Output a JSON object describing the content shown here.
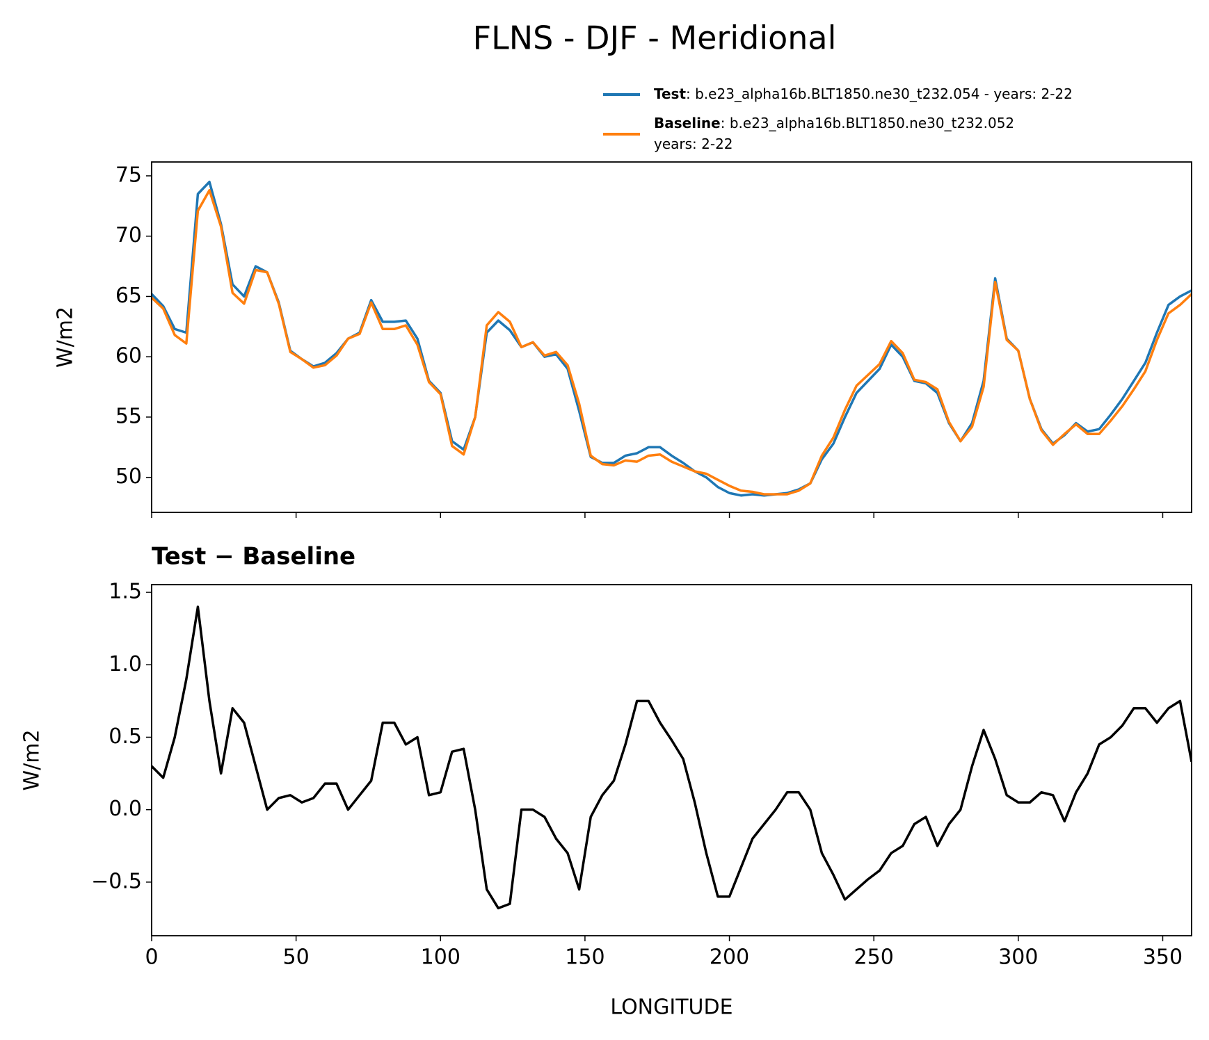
{
  "chart_data": [
    {
      "type": "line",
      "title": "FLNS - DJF - Meridional",
      "ylabel": "W/m2",
      "x": [
        0,
        4,
        8,
        12,
        16,
        20,
        24,
        28,
        32,
        36,
        40,
        44,
        48,
        52,
        56,
        60,
        64,
        68,
        72,
        76,
        80,
        84,
        88,
        92,
        96,
        100,
        104,
        108,
        112,
        116,
        120,
        124,
        128,
        132,
        136,
        140,
        144,
        148,
        152,
        156,
        160,
        164,
        168,
        172,
        176,
        180,
        184,
        188,
        192,
        196,
        200,
        204,
        208,
        212,
        216,
        220,
        224,
        228,
        232,
        236,
        240,
        244,
        248,
        252,
        256,
        260,
        264,
        268,
        272,
        276,
        280,
        284,
        288,
        292,
        296,
        300,
        304,
        308,
        312,
        316,
        320,
        324,
        328,
        332,
        336,
        340,
        344,
        348,
        352,
        356,
        360
      ],
      "series": [
        {
          "name": "Test",
          "detail": [
            ": b.e23_alpha16b.BLT1850.ne30_t232.054 - years: 2-22"
          ],
          "color": "#1f77b4",
          "values": [
            65.2,
            64.2,
            62.3,
            62,
            73.5,
            74.5,
            71,
            66,
            65,
            67.5,
            67,
            64.5,
            60.5,
            59.8,
            59.2,
            59.5,
            60.3,
            61.5,
            62,
            64.7,
            62.9,
            62.9,
            63,
            61.5,
            58,
            57,
            53,
            52.3,
            55,
            62,
            63,
            62.2,
            60.8,
            61.2,
            60,
            60.2,
            59,
            55.5,
            51.7,
            51.2,
            51.2,
            51.8,
            52,
            52.5,
            52.5,
            51.8,
            51.2,
            50.5,
            50,
            49.2,
            48.7,
            48.5,
            48.6,
            48.5,
            48.6,
            48.7,
            49,
            49.5,
            51.5,
            52.8,
            55,
            57,
            58,
            59,
            61,
            60,
            58,
            57.8,
            57,
            54.5,
            53,
            54.5,
            58,
            66.5,
            61.5,
            60.5,
            56.5,
            54,
            52.8,
            53.5,
            54.5,
            53.8,
            54,
            55.2,
            56.5,
            58,
            59.5,
            62,
            64.3,
            65,
            65.5
          ]
        },
        {
          "name": "Baseline",
          "detail": [
            ": b.e23_alpha16b.BLT1850.ne30_t232.052",
            "years: 2-22"
          ],
          "color": "#ff7f0e",
          "values": [
            64.9,
            64,
            61.8,
            61.1,
            72.1,
            73.8,
            70.8,
            65.3,
            64.4,
            67.2,
            67,
            64.4,
            60.4,
            59.8,
            59.1,
            59.3,
            60.1,
            61.5,
            61.9,
            64.5,
            62.3,
            62.3,
            62.6,
            61,
            57.9,
            56.9,
            52.6,
            51.9,
            55,
            62.6,
            63.7,
            62.9,
            60.8,
            61.2,
            60.1,
            60.4,
            59.3,
            56.1,
            51.8,
            51.1,
            51,
            51.4,
            51.3,
            51.8,
            51.9,
            51.3,
            50.9,
            50.5,
            50.3,
            49.8,
            49.3,
            48.9,
            48.8,
            48.6,
            48.6,
            48.6,
            48.9,
            49.5,
            51.8,
            53.3,
            55.6,
            57.6,
            58.5,
            59.4,
            61.3,
            60.3,
            58.1,
            57.9,
            57.3,
            54.6,
            53,
            54.2,
            57.5,
            66.2,
            61.4,
            60.5,
            56.5,
            53.9,
            52.7,
            53.6,
            54.4,
            53.6,
            53.6,
            54.7,
            55.9,
            57.3,
            58.8,
            61.4,
            63.6,
            64.3,
            65.2
          ]
        }
      ],
      "xlim": [
        0,
        360
      ],
      "xticks": [
        0,
        50,
        100,
        150,
        200,
        250,
        300,
        350
      ],
      "ylim": [
        47.1,
        76.15
      ],
      "yticks": [
        50,
        55,
        60,
        65,
        70,
        75
      ]
    },
    {
      "type": "line",
      "title": "Test − Baseline",
      "ylabel": "W/m2",
      "xlabel": "LONGITUDE",
      "x": [
        0,
        4,
        8,
        12,
        16,
        20,
        24,
        28,
        32,
        36,
        40,
        44,
        48,
        52,
        56,
        60,
        64,
        68,
        72,
        76,
        80,
        84,
        88,
        92,
        96,
        100,
        104,
        108,
        112,
        116,
        120,
        124,
        128,
        132,
        136,
        140,
        144,
        148,
        152,
        156,
        160,
        164,
        168,
        172,
        176,
        180,
        184,
        188,
        192,
        196,
        200,
        204,
        208,
        212,
        216,
        220,
        224,
        228,
        232,
        236,
        240,
        244,
        248,
        252,
        256,
        260,
        264,
        268,
        272,
        276,
        280,
        284,
        288,
        292,
        296,
        300,
        304,
        308,
        312,
        316,
        320,
        324,
        328,
        332,
        336,
        340,
        344,
        348,
        352,
        356,
        360
      ],
      "series": [
        {
          "color": "#000000",
          "values": [
            0.3,
            0.22,
            0.5,
            0.9,
            1.4,
            0.75,
            0.25,
            0.7,
            0.6,
            0.3,
            0,
            0.08,
            0.1,
            0.05,
            0.08,
            0.18,
            0.18,
            0,
            0.1,
            0.2,
            0.6,
            0.6,
            0.45,
            0.5,
            0.1,
            0.12,
            0.4,
            0.42,
            0,
            -0.55,
            -0.68,
            -0.65,
            0,
            0,
            -0.05,
            -0.2,
            -0.3,
            -0.55,
            -0.05,
            0.1,
            0.2,
            0.45,
            0.75,
            0.75,
            0.6,
            0.48,
            0.35,
            0.05,
            -0.3,
            -0.6,
            -0.6,
            -0.4,
            -0.2,
            -0.1,
            0,
            0.12,
            0.12,
            0,
            -0.3,
            -0.45,
            -0.62,
            -0.55,
            -0.48,
            -0.42,
            -0.3,
            -0.25,
            -0.1,
            -0.05,
            -0.25,
            -0.1,
            0,
            0.3,
            0.55,
            0.35,
            0.1,
            0.05,
            0.05,
            0.12,
            0.1,
            -0.08,
            0.12,
            0.25,
            0.45,
            0.5,
            0.58,
            0.7,
            0.7,
            0.6,
            0.7,
            0.75,
            0.33
          ]
        }
      ],
      "xlim": [
        0,
        360
      ],
      "xticks": [
        0,
        50,
        100,
        150,
        200,
        250,
        300,
        350
      ],
      "ylim": [
        -0.87,
        1.553
      ],
      "yticks": [
        {
          "value": -0.5,
          "label": "−0.5"
        },
        {
          "value": 0,
          "label": "0.0"
        },
        0.5,
        {
          "value": 1,
          "label": "1.0"
        },
        1.5
      ]
    }
  ]
}
